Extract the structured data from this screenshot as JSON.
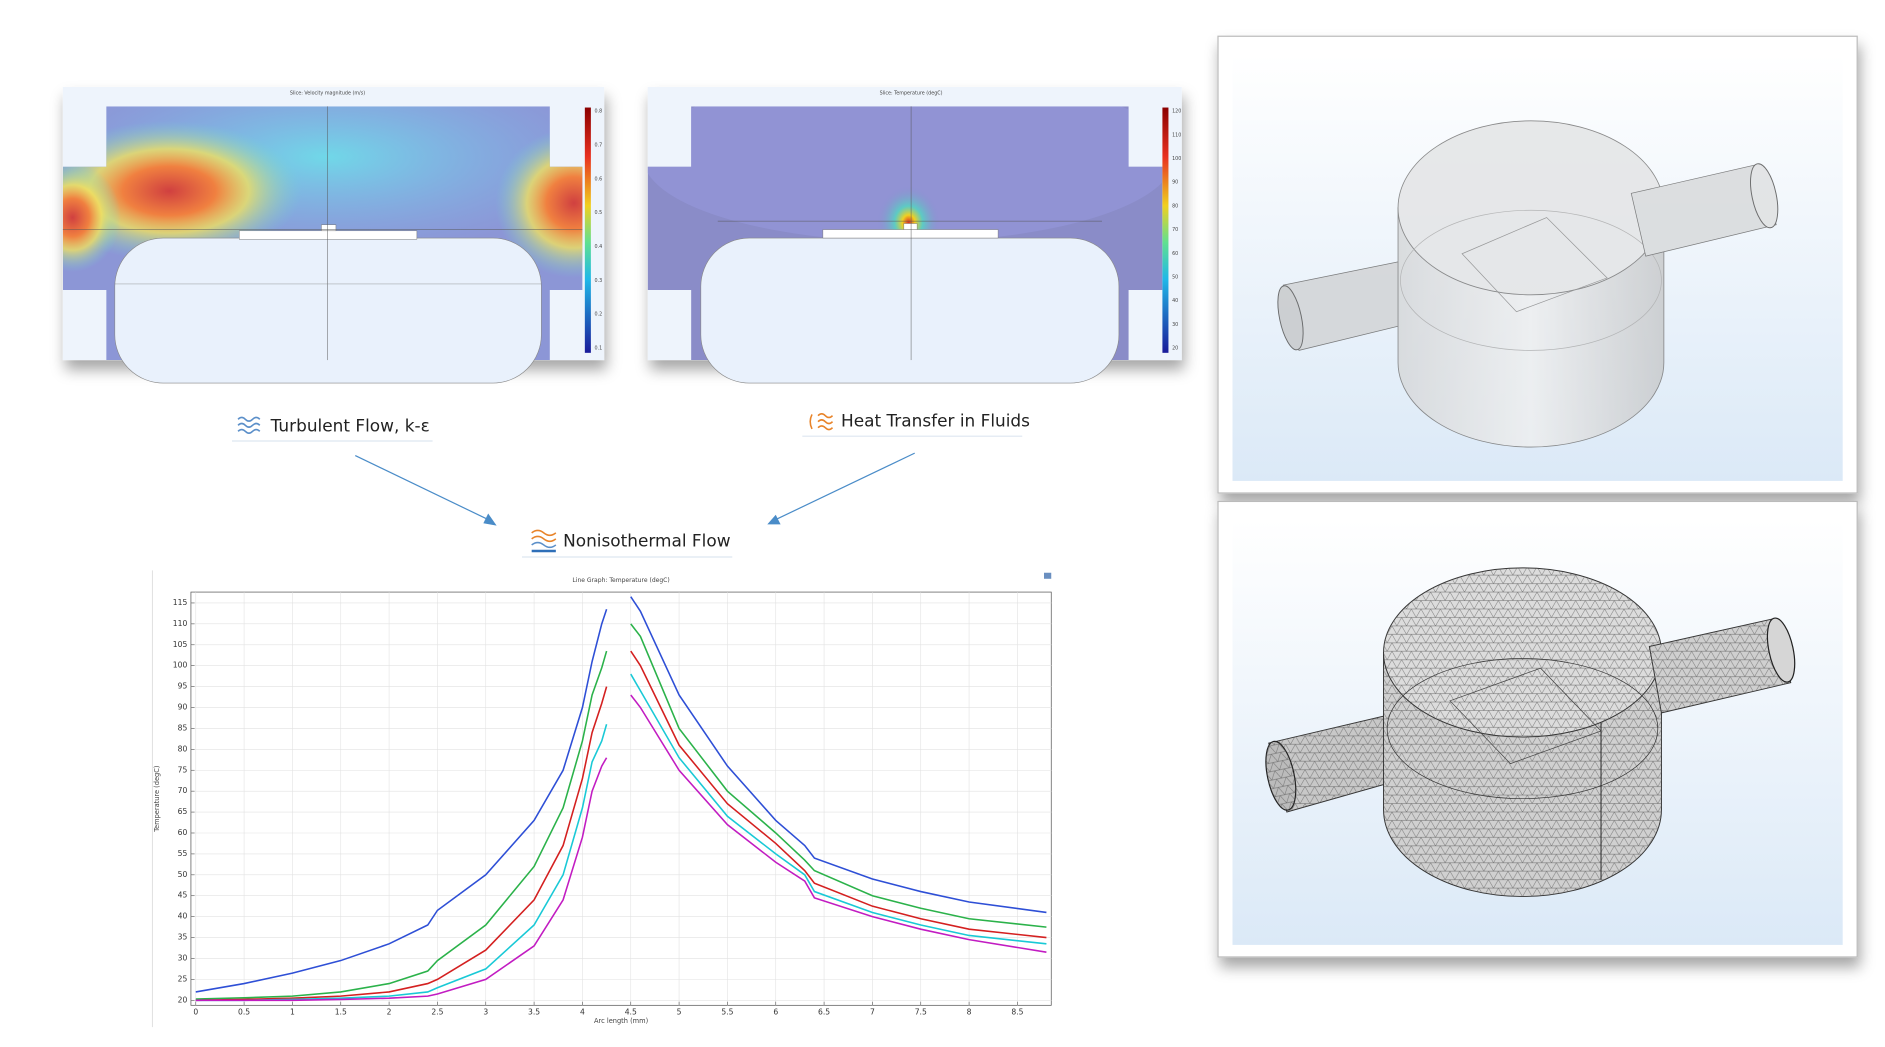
{
  "chart_data": {
    "type": "line",
    "title": "Line Graph: Temperature (degC)",
    "xlabel": "Arc length (mm)",
    "ylabel": "Temperature (degC)",
    "x": [
      0,
      0.5,
      1,
      1.5,
      2,
      2.4,
      2.5,
      3,
      3.5,
      3.8,
      4,
      4.1,
      4.2,
      4.25,
      4.35,
      4.5,
      4.6,
      5,
      5.5,
      6,
      6.3,
      6.4,
      7,
      7.5,
      8,
      8.8
    ],
    "series": [
      {
        "color": "#2e4fd6",
        "values": [
          22,
          24,
          26.5,
          29.5,
          33.5,
          38,
          41.5,
          50,
          63,
          75,
          90,
          101,
          110,
          113.5,
          null,
          116.5,
          113,
          93,
          76,
          63,
          57,
          54,
          49,
          46,
          43.5,
          41
        ]
      },
      {
        "color": "#2bb24a",
        "values": [
          20.3,
          20.6,
          21,
          22,
          24,
          27,
          29.5,
          38,
          52,
          66,
          82,
          93,
          99.5,
          103.5,
          null,
          110,
          107,
          85,
          70,
          60,
          53.5,
          51,
          45,
          42,
          39.5,
          37.5
        ]
      },
      {
        "color": "#d42020",
        "values": [
          20,
          20.2,
          20.5,
          21,
          22,
          24,
          25,
          32,
          44,
          57,
          73,
          84,
          91,
          95,
          null,
          103.5,
          100,
          81,
          67,
          57.5,
          51,
          48,
          42.5,
          39.5,
          37,
          35
        ]
      },
      {
        "color": "#19c9d6",
        "values": [
          20,
          20,
          20.2,
          20.5,
          21,
          22,
          23,
          27.5,
          38,
          50,
          66,
          77,
          82,
          86,
          null,
          98,
          94,
          78,
          64,
          55,
          50,
          46,
          41,
          38,
          35.5,
          33.5
        ]
      },
      {
        "color": "#c21cc2",
        "values": [
          20,
          20,
          20,
          20.2,
          20.5,
          21,
          21.5,
          25,
          33,
          44,
          59,
          70,
          76,
          78,
          null,
          93,
          90,
          75,
          62,
          53,
          48.5,
          44.5,
          40,
          37,
          34.5,
          31.5
        ]
      }
    ],
    "xlim": [
      -0.05,
      8.85
    ],
    "ylim": [
      18.8,
      117.6
    ],
    "xticks": [
      0,
      0.5,
      1,
      1.5,
      2,
      2.5,
      3,
      3.5,
      4,
      4.5,
      5,
      5.5,
      6,
      6.5,
      7,
      7.5,
      8,
      8.5
    ],
    "yticks": [
      20,
      25,
      30,
      35,
      40,
      45,
      50,
      55,
      60,
      65,
      70,
      75,
      80,
      85,
      90,
      95,
      100,
      105,
      110,
      115
    ],
    "grid": true
  },
  "panels": [
    {
      "title": "Slice: Velocity magnitude (m/s)",
      "colorbar": [
        0.8,
        0.7,
        0.6,
        0.5,
        0.4,
        0.3,
        0.2,
        0.1
      ]
    },
    {
      "title": "Slice: Temperature (degC)",
      "colorbar": [
        120,
        110,
        100,
        90,
        80,
        70,
        60,
        50,
        40,
        30,
        20
      ]
    }
  ],
  "physics": {
    "turbulent": "Turbulent Flow, k-ε",
    "heat": "Heat Transfer in Fluids",
    "coupled": "Nonisothermal Flow"
  }
}
